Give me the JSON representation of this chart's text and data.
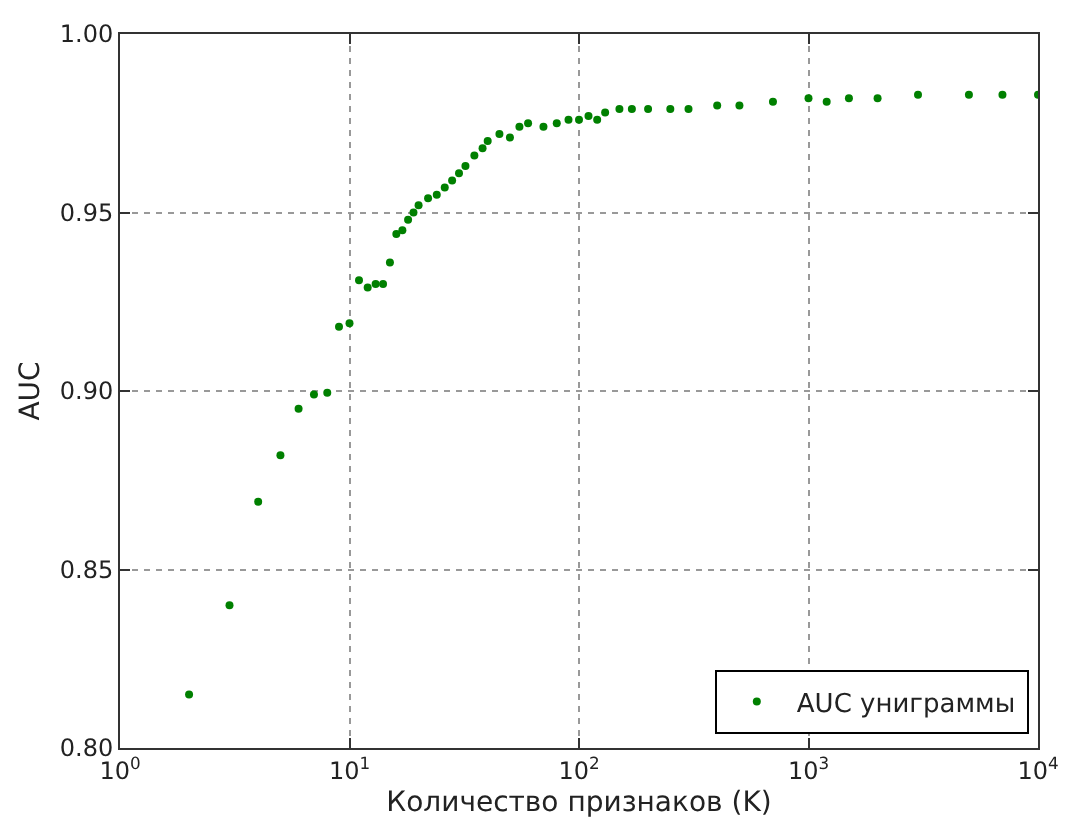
{
  "chart_data": {
    "type": "scatter",
    "xlabel": "Количество признаков (K)",
    "ylabel": "AUC",
    "log": "x",
    "xlim": [
      1,
      10000
    ],
    "xticks": [
      {
        "value": 1,
        "label": "10$^{0}$"
      },
      {
        "value": 10,
        "label": "10$^{1}$"
      },
      {
        "value": 100,
        "label": "10$^{2}$"
      },
      {
        "value": 1000,
        "label": "10$^{3}$"
      },
      {
        "value": 10000,
        "label": "10$^{4}$"
      }
    ],
    "ylim": [
      0.8,
      1.0
    ],
    "yticks": [
      {
        "value": 0.8,
        "label": "0.80"
      },
      {
        "value": 0.85,
        "label": "0.85"
      },
      {
        "value": 0.9,
        "label": "0.90"
      },
      {
        "value": 0.95,
        "label": "0.95"
      },
      {
        "value": 1.0,
        "label": "1.00"
      }
    ],
    "grid": true,
    "legend": "bottom right",
    "marker": "circle",
    "series": [
      {
        "name": "AUC униграммы",
        "color": "#008000",
        "x": [
          2,
          3,
          4,
          5,
          6,
          7,
          8,
          9,
          10,
          11,
          12,
          13,
          14,
          15,
          16,
          17,
          18,
          19,
          20,
          22,
          24,
          26,
          28,
          30,
          32,
          35,
          38,
          40,
          45,
          50,
          55,
          60,
          70,
          80,
          90,
          100,
          110,
          120,
          130,
          150,
          170,
          200,
          250,
          300,
          400,
          500,
          700,
          1000,
          1200,
          1500,
          2000,
          3000,
          5000,
          7000,
          10000
        ],
        "values": [
          0.815,
          0.84,
          0.869,
          0.882,
          0.895,
          0.899,
          0.8995,
          0.918,
          0.919,
          0.931,
          0.929,
          0.93,
          0.93,
          0.936,
          0.944,
          0.945,
          0.948,
          0.95,
          0.952,
          0.954,
          0.955,
          0.957,
          0.959,
          0.961,
          0.963,
          0.966,
          0.968,
          0.97,
          0.972,
          0.971,
          0.974,
          0.975,
          0.974,
          0.975,
          0.976,
          0.976,
          0.977,
          0.976,
          0.978,
          0.979,
          0.979,
          0.979,
          0.979,
          0.979,
          0.98,
          0.98,
          0.981,
          0.982,
          0.981,
          0.982,
          0.982,
          0.983,
          0.983,
          0.983,
          0.983
        ]
      }
    ]
  }
}
